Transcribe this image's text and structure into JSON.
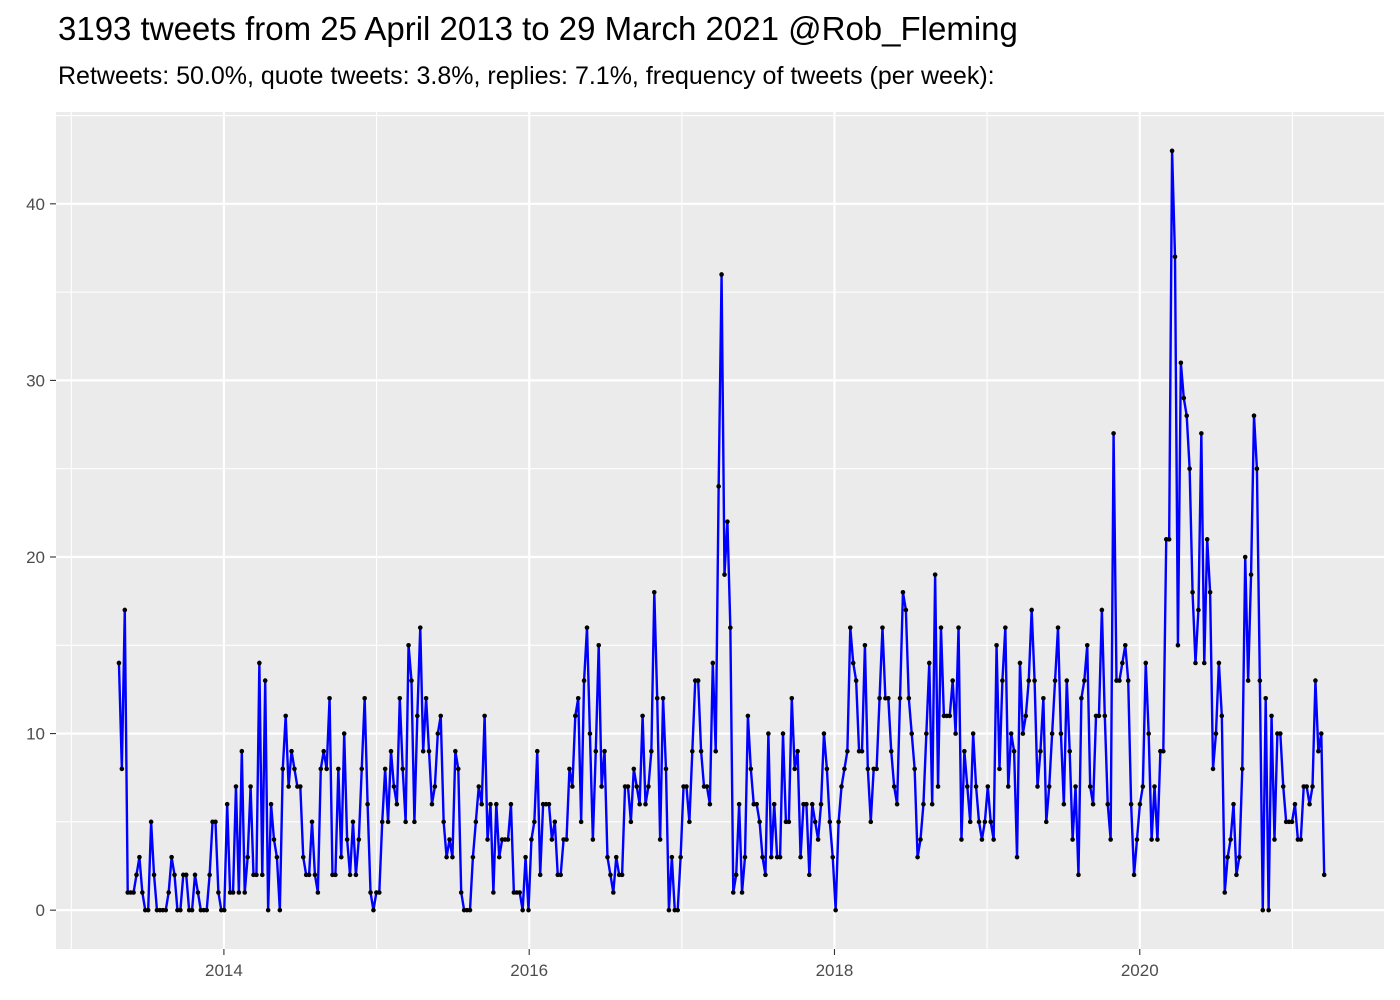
{
  "title": "3193 tweets from 25 April 2013 to 29 March 2021 @Rob_Fleming",
  "subtitle": "Retweets: 50.0%, quote tweets: 3.8%, replies: 7.1%, frequency of tweets (per week):",
  "chart_data": {
    "type": "line",
    "title": "3193 tweets from 25 April 2013 to 29 March 2021 @Rob_Fleming",
    "subtitle": "Retweets: 50.0%, quote tweets: 3.8%, replies: 7.1%, frequency of tweets (per week):",
    "xlabel": "",
    "ylabel": "",
    "x_start": "2013-04-25",
    "x_interval": "week",
    "xlim": [
      2012.9,
      2021.6
    ],
    "ylim": [
      -2.2,
      45.2
    ],
    "x_ticks": [
      2014,
      2016,
      2018,
      2020
    ],
    "x_tick_labels": [
      "2014",
      "2016",
      "2018",
      "2020"
    ],
    "y_ticks": [
      0,
      10,
      20,
      30,
      40
    ],
    "y_tick_labels": [
      "0",
      "10",
      "20",
      "30",
      "40"
    ],
    "grid": true,
    "background": "#ebebeb",
    "line_color": "#0000ff",
    "point_color": "#000000",
    "series": [
      {
        "values": [
          14,
          8,
          17,
          1,
          1,
          1,
          2,
          3,
          1,
          0,
          0,
          5,
          2,
          0,
          0,
          0,
          0,
          1,
          3,
          2,
          0,
          0,
          2,
          2,
          0,
          0,
          2,
          1,
          0,
          0,
          0,
          2,
          5,
          5,
          1,
          0,
          0,
          6,
          1,
          1,
          7,
          1,
          9,
          1,
          3,
          7,
          2,
          2,
          14,
          2,
          13,
          0,
          6,
          4,
          3,
          0,
          8,
          11,
          7,
          9,
          8,
          7,
          7,
          3,
          2,
          2,
          5,
          2,
          1,
          8,
          9,
          8,
          12,
          2,
          2,
          8,
          3,
          10,
          4,
          2,
          5,
          2,
          4,
          8,
          12,
          6,
          1,
          0,
          1,
          1,
          5,
          8,
          5,
          9,
          7,
          6,
          12,
          8,
          5,
          15,
          13,
          5,
          11,
          16,
          9,
          12,
          9,
          6,
          7,
          10,
          11,
          5,
          3,
          4,
          3,
          9,
          8,
          1,
          0,
          0,
          0,
          3,
          5,
          7,
          6,
          11,
          4,
          6,
          1,
          6,
          3,
          4,
          4,
          4,
          6,
          1,
          1,
          1,
          0,
          3,
          0,
          4,
          5,
          9,
          2,
          6,
          6,
          6,
          4,
          5,
          2,
          2,
          4,
          4,
          8,
          7,
          11,
          12,
          5,
          13,
          16,
          10,
          4,
          9,
          15,
          7,
          9,
          3,
          2,
          1,
          3,
          2,
          2,
          7,
          7,
          5,
          8,
          7,
          6,
          11,
          6,
          7,
          9,
          18,
          12,
          4,
          12,
          8,
          0,
          3,
          0,
          0,
          3,
          7,
          7,
          5,
          9,
          13,
          13,
          9,
          7,
          7,
          6,
          14,
          9,
          24,
          36,
          19,
          22,
          16,
          1,
          2,
          6,
          1,
          3,
          11,
          8,
          6,
          6,
          5,
          3,
          2,
          10,
          3,
          6,
          3,
          3,
          10,
          5,
          5,
          12,
          8,
          9,
          3,
          6,
          6,
          2,
          6,
          5,
          4,
          6,
          10,
          8,
          5,
          3,
          0,
          5,
          7,
          8,
          9,
          16,
          14,
          13,
          9,
          9,
          15,
          8,
          5,
          8,
          8,
          12,
          16,
          12,
          12,
          9,
          7,
          6,
          12,
          18,
          17,
          12,
          10,
          8,
          3,
          4,
          6,
          10,
          14,
          6,
          19,
          7,
          16,
          11,
          11,
          11,
          13,
          10,
          16,
          4,
          9,
          7,
          5,
          10,
          7,
          5,
          4,
          5,
          7,
          5,
          4,
          15,
          8,
          13,
          16,
          7,
          10,
          9,
          3,
          14,
          10,
          11,
          13,
          17,
          13,
          7,
          9,
          12,
          5,
          7,
          10,
          13,
          16,
          10,
          6,
          13,
          9,
          4,
          7,
          2,
          12,
          13,
          15,
          7,
          6,
          11,
          11,
          17,
          11,
          6,
          4,
          27,
          13,
          13,
          14,
          15,
          13,
          6,
          2,
          4,
          6,
          7,
          14,
          10,
          4,
          7,
          4,
          9,
          9,
          21,
          21,
          43,
          37,
          15,
          31,
          29,
          28,
          25,
          18,
          14,
          17,
          27,
          14,
          21,
          18,
          8,
          10,
          14,
          11,
          1,
          3,
          4,
          6,
          2,
          3,
          8,
          20,
          13,
          19,
          28,
          25,
          13,
          0,
          12,
          0,
          11,
          4,
          10,
          10,
          7,
          5,
          5,
          5,
          6,
          4,
          4,
          7,
          7,
          6,
          7,
          13,
          9,
          10,
          2
        ]
      }
    ]
  }
}
